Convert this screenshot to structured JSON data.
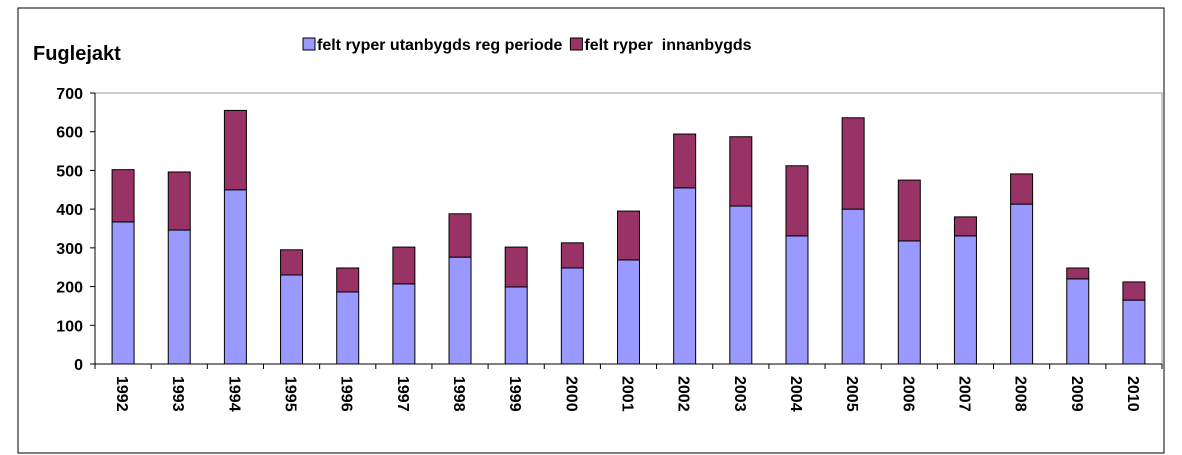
{
  "chart_data": {
    "type": "stacked_bar",
    "title": "Fuglejakt",
    "categories": [
      "1992",
      "1993",
      "1994",
      "1995",
      "1996",
      "1997",
      "1998",
      "1999",
      "2000",
      "2001",
      "2002",
      "2003",
      "2004",
      "2005",
      "2006",
      "2007",
      "2008",
      "2009",
      "2010"
    ],
    "series": [
      {
        "name": "felt ryper utanbygds reg periode",
        "color": "#9999ff",
        "values": [
          367,
          346,
          450,
          230,
          186,
          207,
          276,
          199,
          248,
          269,
          455,
          408,
          331,
          400,
          318,
          331,
          413,
          220,
          165
        ]
      },
      {
        "name": "felt ryper  innanbygds",
        "color": "#993366",
        "values": [
          135,
          150,
          205,
          65,
          62,
          95,
          112,
          103,
          65,
          126,
          139,
          179,
          181,
          236,
          157,
          49,
          78,
          28,
          47
        ]
      }
    ],
    "ylim": [
      0,
      700
    ],
    "yticks": [
      0,
      100,
      200,
      300,
      400,
      500,
      600,
      700
    ],
    "legend": "top"
  }
}
